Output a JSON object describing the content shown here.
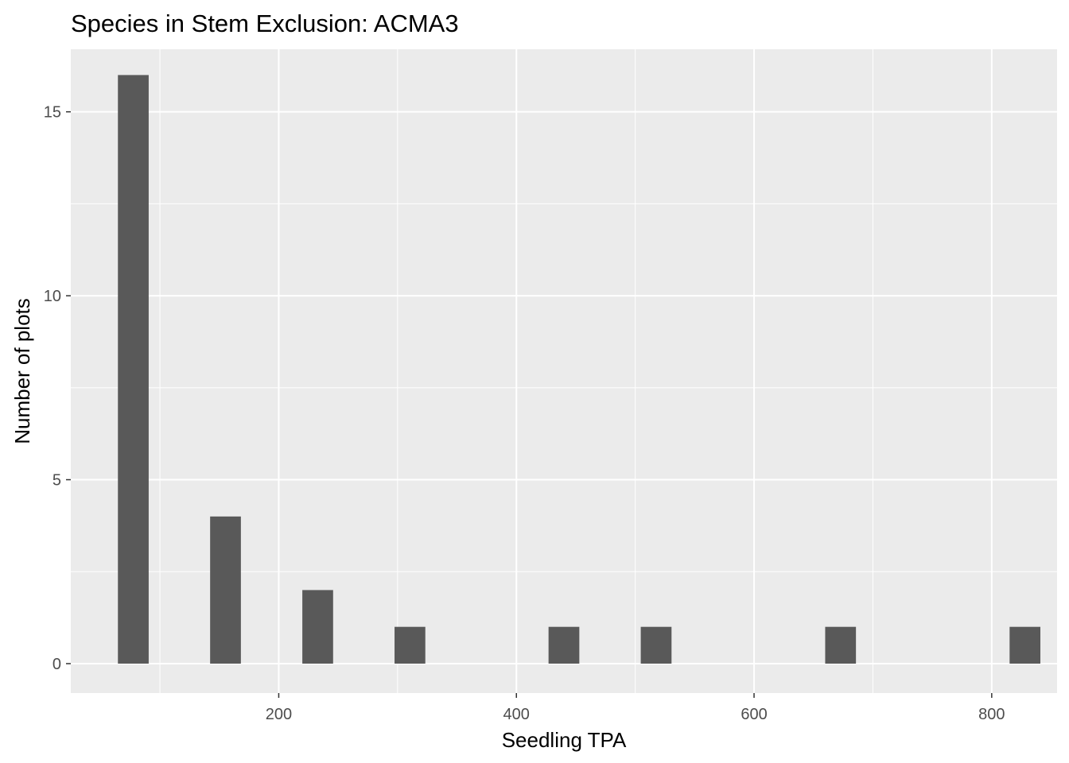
{
  "chart_data": {
    "type": "bar",
    "title": "Species in Stem Exclusion: ACMA3",
    "xlabel": "Seedling TPA",
    "ylabel": "Number of plots",
    "x": [
      77.6,
      155.2,
      232.8,
      310.4,
      440,
      517.6,
      672.8,
      828
    ],
    "values": [
      16,
      4,
      2,
      1,
      1,
      1,
      1,
      1
    ],
    "bin_width": 25.9,
    "xlim": [
      25,
      855
    ],
    "ylim": [
      -0.8,
      16.7
    ],
    "x_ticks": [
      200,
      400,
      600,
      800
    ],
    "x_tick_labels": [
      "200",
      "400",
      "600",
      "800"
    ],
    "y_ticks": [
      0,
      5,
      10,
      15
    ],
    "y_tick_labels": [
      "0",
      "5",
      "10",
      "15"
    ],
    "bar_color": "#595959",
    "panel_background": "#EBEBEB",
    "grid": true,
    "legend": "none"
  }
}
